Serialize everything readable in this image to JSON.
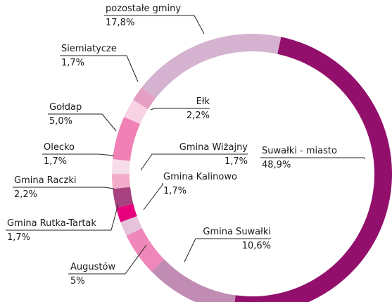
{
  "chart_data": {
    "type": "donut",
    "categories": [
      "Suwałki - miasto",
      "Gmina Suwałki",
      "Augustów",
      "Gmina Kalinowo",
      "Gmina Rutka-Tartak",
      "Gmina Raczki",
      "Gmina Wiżajny",
      "Olecko",
      "Gołdap",
      "Ełk",
      "Siemiatycze",
      "pozostałe gminy"
    ],
    "values": [
      48.9,
      10.6,
      5,
      1.7,
      1.7,
      2.2,
      1.7,
      1.7,
      5.0,
      2.2,
      1.7,
      17.8
    ],
    "value_labels": [
      "48,9%",
      "10,6%",
      "5%",
      "1,7%",
      "1,7%",
      "2,2%",
      "1,7%",
      "1,7%",
      "5,0%",
      "2,2%",
      "1,7%",
      "17,8%"
    ],
    "colors": [
      "#930f6c",
      "#c08cb3",
      "#ef87bb",
      "#e5c3dc",
      "#e6007e",
      "#a8417f",
      "#f2acc9",
      "#f6dbe9",
      "#f080b5",
      "#f9d3e3",
      "#e79ec3",
      "#d5b2cf"
    ]
  }
}
